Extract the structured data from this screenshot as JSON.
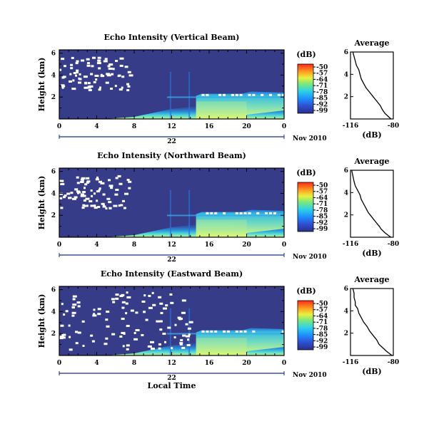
{
  "chart_data": [
    {
      "type": "heatmap",
      "title": "Echo Intensity (Vertical Beam)",
      "ylabel": "Height (km)",
      "x_ticks": [
        "0",
        "4",
        "8",
        "12",
        "16",
        "20",
        "0"
      ],
      "y_ticks": [
        "6",
        "4",
        "2"
      ],
      "ylim": [
        0,
        6.3
      ],
      "xlim": [
        0,
        24
      ],
      "date_day": "22",
      "date_month": "Nov 2010",
      "colorbar": {
        "label": "(dB)",
        "ticks": [
          "-50",
          "-57",
          "-64",
          "-71",
          "-78",
          "-85",
          "-92",
          "-99"
        ]
      },
      "average": {
        "title": "Average",
        "xlabel": "(dB)",
        "x_ticks": [
          "-116",
          "-80"
        ],
        "y_ticks": [
          "6",
          "4",
          "2"
        ],
        "xlim": [
          -116,
          -80
        ],
        "ylim": [
          0,
          6
        ],
        "profile": [
          [
            -114,
            6
          ],
          [
            -113,
            5.6
          ],
          [
            -112,
            5.2
          ],
          [
            -111,
            4.8
          ],
          [
            -109,
            4.4
          ],
          [
            -108,
            4.0
          ],
          [
            -107,
            3.6
          ],
          [
            -105,
            3.2
          ],
          [
            -103,
            2.8
          ],
          [
            -100,
            2.4
          ],
          [
            -97,
            2.0
          ],
          [
            -94,
            1.6
          ],
          [
            -91,
            1.2
          ],
          [
            -89,
            0.8
          ],
          [
            -87,
            0.5
          ],
          [
            -84,
            0.2
          ],
          [
            -82,
            0
          ]
        ]
      }
    },
    {
      "type": "heatmap",
      "title": "Echo Intensity (Northward Beam)",
      "ylabel": "Height (km)",
      "x_ticks": [
        "0",
        "4",
        "8",
        "12",
        "16",
        "20",
        "0"
      ],
      "y_ticks": [
        "6",
        "4",
        "2"
      ],
      "ylim": [
        0,
        6.3
      ],
      "xlim": [
        0,
        24
      ],
      "date_day": "22",
      "date_month": "Nov 2010",
      "colorbar": {
        "label": "(dB)",
        "ticks": [
          "-50",
          "-57",
          "-64",
          "-71",
          "-78",
          "-85",
          "-92",
          "-99"
        ]
      },
      "average": {
        "title": "Average",
        "xlabel": "(dB)",
        "x_ticks": [
          "-116",
          "-80"
        ],
        "y_ticks": [
          "6",
          "4",
          "2"
        ],
        "xlim": [
          -116,
          -80
        ],
        "ylim": [
          0,
          6
        ],
        "profile": [
          [
            -115,
            6
          ],
          [
            -114,
            5.5
          ],
          [
            -113,
            5.0
          ],
          [
            -112,
            4.6
          ],
          [
            -110,
            4.2
          ],
          [
            -108,
            3.8
          ],
          [
            -107,
            3.4
          ],
          [
            -105,
            3.0
          ],
          [
            -103,
            2.6
          ],
          [
            -101,
            2.2
          ],
          [
            -98,
            1.8
          ],
          [
            -95,
            1.4
          ],
          [
            -92,
            1.0
          ],
          [
            -90,
            0.7
          ],
          [
            -87,
            0.4
          ],
          [
            -84,
            0.15
          ],
          [
            -82,
            0
          ]
        ]
      }
    },
    {
      "type": "heatmap",
      "title": "Echo Intensity (Eastward Beam)",
      "ylabel": "Height (km)",
      "x_ticks": [
        "0",
        "4",
        "8",
        "12",
        "16",
        "20",
        "0"
      ],
      "y_ticks": [
        "6",
        "4",
        "2"
      ],
      "ylim": [
        0,
        6.3
      ],
      "xlim": [
        0,
        24
      ],
      "date_day": "22",
      "date_month": "Nov 2010",
      "xlabel": "Local Time",
      "colorbar": {
        "label": "(dB)",
        "ticks": [
          "-50",
          "-57",
          "-64",
          "-71",
          "-78",
          "-85",
          "-92",
          "-99"
        ]
      },
      "average": {
        "title": "Average",
        "xlabel": "(dB)",
        "x_ticks": [
          "-116",
          "-80"
        ],
        "y_ticks": [
          "6",
          "4",
          "2"
        ],
        "xlim": [
          -116,
          -80
        ],
        "ylim": [
          0,
          6
        ],
        "profile": [
          [
            -114,
            6
          ],
          [
            -113,
            5.6
          ],
          [
            -113,
            5.2
          ],
          [
            -112,
            4.8
          ],
          [
            -112,
            4.5
          ],
          [
            -110,
            4.2
          ],
          [
            -109,
            3.8
          ],
          [
            -107,
            3.4
          ],
          [
            -105,
            3.0
          ],
          [
            -102,
            2.6
          ],
          [
            -100,
            2.2
          ],
          [
            -97,
            1.8
          ],
          [
            -94,
            1.4
          ],
          [
            -92,
            1.0
          ],
          [
            -89,
            0.7
          ],
          [
            -86,
            0.4
          ],
          [
            -83,
            0.15
          ],
          [
            -81,
            0
          ]
        ]
      }
    }
  ]
}
